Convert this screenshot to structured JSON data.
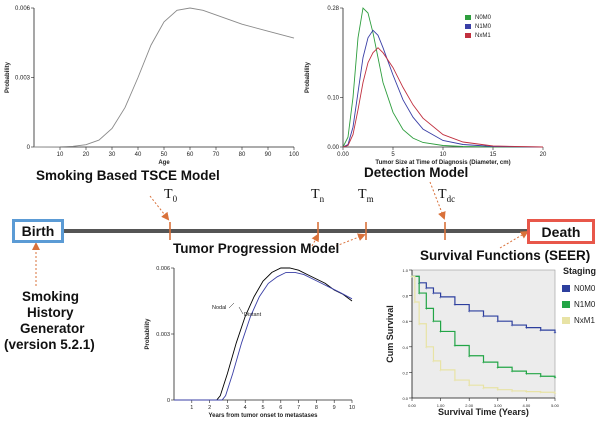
{
  "colors": {
    "birth_border": "#5b9bd5",
    "death_border": "#e8574a",
    "timeline": "#555555",
    "arrow": "#d9713a",
    "gray_curve": "#8a8a8a",
    "n0m0": "#2e9e3e",
    "n1m0": "#3a3fa6",
    "nxm1": "#c1303f",
    "surv_n0m0": "#2d3f9e",
    "surv_n1m0": "#22a546",
    "surv_nxm1": "#e8e3a5",
    "surv_bg": "#ececec"
  },
  "labels": {
    "smoking_model": "Smoking Based TSCE Model",
    "detection_model": "Detection Model",
    "tumor_progression": "Tumor Progression Model",
    "survival_functions": "Survival Functions (SEER)",
    "smoking_generator_lines": [
      "Smoking",
      "History",
      "Generator",
      "(version 5.2.1)"
    ],
    "birth": "Birth",
    "death": "Death",
    "t0": "T",
    "t0_sub": "0",
    "tn": "T",
    "tn_sub": "n",
    "tm": "T",
    "tm_sub": "m",
    "tdc": "T",
    "tdc_sub": "dc"
  },
  "chart_data": [
    {
      "id": "tsce",
      "type": "line",
      "title": "",
      "xlabel": "Age",
      "ylabel": "Probability",
      "xlim": [
        0,
        100
      ],
      "ylim": [
        0,
        0.006
      ],
      "xticks": [
        10,
        20,
        30,
        40,
        50,
        60,
        70,
        80,
        90,
        100
      ],
      "yticks": [
        {
          "v": 0,
          "label": "0"
        },
        {
          "v": 0.003,
          "label": "0.003"
        },
        {
          "v": 0.006,
          "label": "0.006"
        }
      ],
      "series": [
        {
          "name": "TSCE",
          "color": "gray_curve",
          "x": [
            0,
            10,
            15,
            20,
            25,
            30,
            35,
            40,
            45,
            50,
            55,
            60,
            65,
            70,
            75,
            80,
            90,
            100
          ],
          "y": [
            0,
            1e-05,
            3e-05,
            0.0001,
            0.0003,
            0.0008,
            0.0017,
            0.003,
            0.0044,
            0.0054,
            0.0059,
            0.006,
            0.0059,
            0.0057,
            0.0055,
            0.0053,
            0.005,
            0.0047
          ]
        }
      ]
    },
    {
      "id": "detection",
      "type": "line",
      "title": "",
      "xlabel": "Tumor Size at Time of Diagnosis (Diameter, cm)",
      "ylabel": "Probability",
      "xlim": [
        0,
        20
      ],
      "ylim": [
        0,
        0.28
      ],
      "xticks": [
        0,
        5,
        10,
        15,
        20
      ],
      "xtick_labels": [
        "0.00",
        "5",
        "10",
        "15",
        "20"
      ],
      "yticks": [
        {
          "v": 0,
          "label": "0.00"
        },
        {
          "v": 0.1,
          "label": "0.10"
        },
        {
          "v": 0.28,
          "label": "0.28"
        }
      ],
      "legend": [
        "N0M0",
        "N1M0",
        "NxM1"
      ],
      "legend_position": "top-right",
      "series": [
        {
          "name": "N0M0",
          "color": "n0m0",
          "x": [
            0,
            0.5,
            1,
            1.5,
            2,
            2.5,
            3,
            3.5,
            4,
            5,
            6,
            7,
            8,
            10,
            12,
            15,
            20
          ],
          "y": [
            0,
            0.02,
            0.1,
            0.22,
            0.28,
            0.27,
            0.23,
            0.18,
            0.13,
            0.07,
            0.035,
            0.018,
            0.009,
            0.003,
            0.001,
            0.0003,
            0
          ]
        },
        {
          "name": "N1M0",
          "color": "n1m0",
          "x": [
            0,
            0.5,
            1,
            1.5,
            2,
            2.5,
            3,
            3.5,
            4,
            5,
            6,
            7,
            8,
            10,
            12,
            15,
            20
          ],
          "y": [
            0,
            0.005,
            0.04,
            0.11,
            0.18,
            0.22,
            0.235,
            0.225,
            0.2,
            0.145,
            0.095,
            0.06,
            0.036,
            0.013,
            0.005,
            0.001,
            0
          ]
        },
        {
          "name": "NxM1",
          "color": "nxm1",
          "x": [
            0,
            0.5,
            1,
            1.5,
            2,
            2.5,
            3,
            3.5,
            4,
            5,
            6,
            7,
            8,
            10,
            12,
            15,
            20
          ],
          "y": [
            0,
            0.003,
            0.025,
            0.075,
            0.13,
            0.17,
            0.19,
            0.2,
            0.19,
            0.16,
            0.12,
            0.085,
            0.058,
            0.025,
            0.01,
            0.002,
            0
          ]
        }
      ]
    },
    {
      "id": "progression",
      "type": "line",
      "title": "",
      "xlabel": "Years from tumor onset to metastases",
      "ylabel": "Probability",
      "xlim": [
        0,
        10
      ],
      "ylim": [
        0,
        0.006
      ],
      "xticks": [
        1,
        2,
        3,
        4,
        5,
        6,
        7,
        8,
        9,
        10
      ],
      "yticks": [
        {
          "v": 0,
          "label": "0"
        },
        {
          "v": 0.003,
          "label": "0.003"
        },
        {
          "v": 0.006,
          "label": "0.006"
        }
      ],
      "annotations": [
        "Nodal",
        "Distant"
      ],
      "series": [
        {
          "name": "Nodal",
          "color": "#000000",
          "x": [
            0,
            2.4,
            2.6,
            3,
            3.5,
            4,
            4.5,
            5,
            5.5,
            6,
            6.5,
            7,
            7.5,
            8,
            8.5,
            9,
            9.5,
            10
          ],
          "y": [
            0,
            0,
            0.0002,
            0.0012,
            0.0026,
            0.0038,
            0.0047,
            0.0054,
            0.0058,
            0.006,
            0.006,
            0.0059,
            0.0057,
            0.0055,
            0.0053,
            0.005,
            0.0048,
            0.0045
          ]
        },
        {
          "name": "Distant",
          "color": "n1m0",
          "x": [
            0,
            2.7,
            2.9,
            3.3,
            3.8,
            4.3,
            4.8,
            5.3,
            5.8,
            6.3,
            6.8,
            7.3,
            7.8,
            8.3,
            8.8,
            9.3,
            10
          ],
          "y": [
            0,
            0,
            0.0002,
            0.0012,
            0.0026,
            0.0038,
            0.0047,
            0.0053,
            0.0056,
            0.0058,
            0.0058,
            0.0057,
            0.0055,
            0.0053,
            0.0051,
            0.0049,
            0.0046
          ]
        }
      ]
    },
    {
      "id": "survival",
      "type": "line",
      "title": "",
      "xlabel": "Survival Time (Years)",
      "ylabel": "Cum Survival",
      "xlim": [
        0,
        5
      ],
      "ylim": [
        0,
        1
      ],
      "xticks": [
        0,
        1,
        2,
        3,
        4,
        5
      ],
      "xtick_labels": [
        "0.00",
        "1.00",
        "2.00",
        "3.00",
        "4.00",
        "5.00"
      ],
      "yticks": [
        {
          "v": 0,
          "label": "0.0"
        },
        {
          "v": 0.2,
          "label": "0.2"
        },
        {
          "v": 0.4,
          "label": "0.4"
        },
        {
          "v": 0.6,
          "label": "0.6"
        },
        {
          "v": 0.8,
          "label": "0.8"
        },
        {
          "v": 1,
          "label": "1.0"
        }
      ],
      "legend_title": "Staging",
      "legend": [
        "N0M0",
        "N1M0",
        "NxM1"
      ],
      "legend_position": "right",
      "series": [
        {
          "name": "N0M0",
          "color": "surv_n0m0",
          "x": [
            0,
            0.25,
            0.5,
            0.75,
            1,
            1.5,
            2,
            2.5,
            3,
            3.5,
            4,
            4.5,
            5
          ],
          "y": [
            0.95,
            0.9,
            0.86,
            0.82,
            0.79,
            0.73,
            0.68,
            0.64,
            0.6,
            0.57,
            0.55,
            0.53,
            0.51
          ]
        },
        {
          "name": "N1M0",
          "color": "surv_n1m0",
          "x": [
            0,
            0.25,
            0.5,
            0.75,
            1,
            1.5,
            2,
            2.5,
            3,
            3.5,
            4,
            4.5,
            5
          ],
          "y": [
            0.95,
            0.82,
            0.7,
            0.6,
            0.52,
            0.41,
            0.33,
            0.28,
            0.24,
            0.21,
            0.19,
            0.17,
            0.16
          ]
        },
        {
          "name": "NxM1",
          "color": "surv_nxm1",
          "x": [
            0,
            0.1,
            0.25,
            0.5,
            0.75,
            1,
            1.5,
            2,
            2.5,
            3,
            3.5,
            4,
            4.5,
            5
          ],
          "y": [
            0.95,
            0.75,
            0.58,
            0.4,
            0.29,
            0.22,
            0.14,
            0.1,
            0.08,
            0.065,
            0.055,
            0.05,
            0.045,
            0.04
          ]
        }
      ]
    }
  ]
}
